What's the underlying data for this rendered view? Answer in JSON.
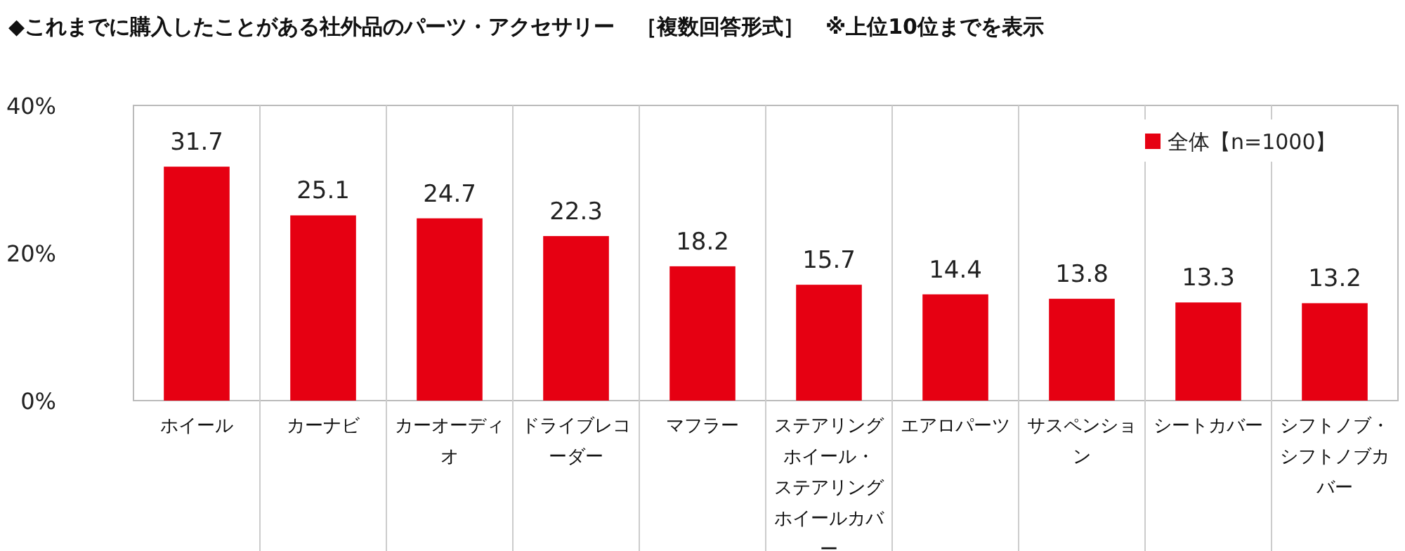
{
  "chart_data": {
    "type": "bar",
    "title": "◆これまでに購入したことがある社外品のパーツ・アクセサリー　［複数回答形式］　※上位10位までを表示",
    "categories": [
      "ホイール",
      "カーナビ",
      "カーオーディオ",
      "ドライブレコーダー",
      "マフラー",
      "ステアリングホイール・ステアリングホイールカバー",
      "エアロパーツ",
      "サスペンション",
      "シートカバー",
      "シフトノブ・シフトノブカバー"
    ],
    "series": [
      {
        "name": "全体【n=1000】",
        "color": "#e60012",
        "values": [
          31.7,
          25.1,
          24.7,
          22.3,
          18.2,
          15.7,
          14.4,
          13.8,
          13.3,
          13.2
        ]
      }
    ],
    "ylim": [
      0,
      40
    ],
    "yticks": [
      {
        "value": 0,
        "label": "0%"
      },
      {
        "value": 20,
        "label": "20%"
      },
      {
        "value": 40,
        "label": "40%"
      }
    ],
    "data_labels": true,
    "legend": "top right"
  }
}
